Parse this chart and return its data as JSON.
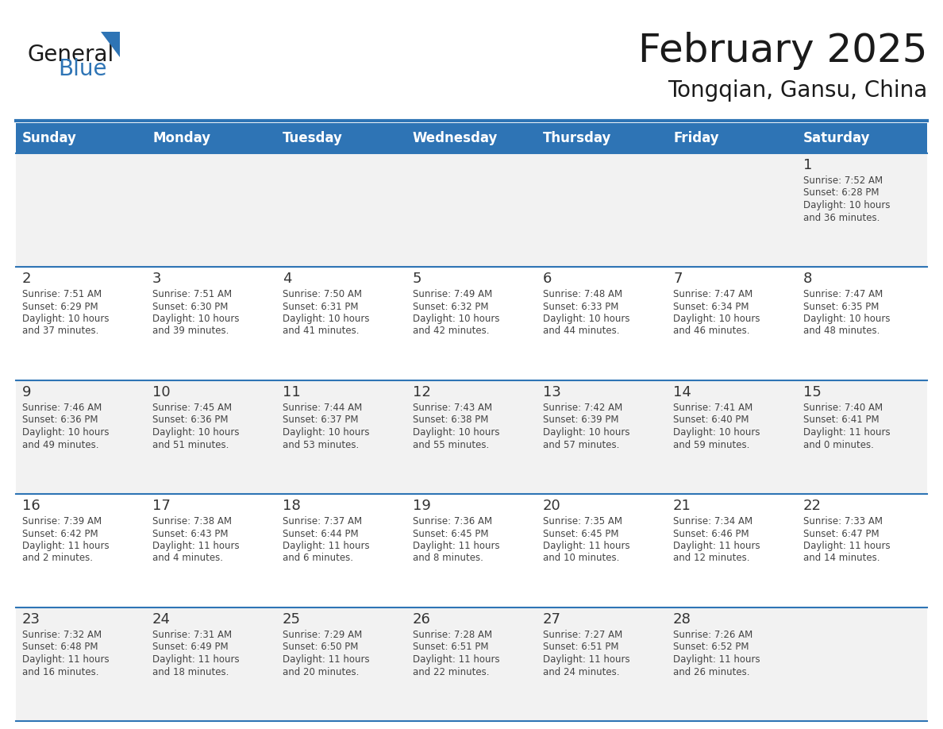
{
  "title": "February 2025",
  "subtitle": "Tongqian, Gansu, China",
  "days_of_week": [
    "Sunday",
    "Monday",
    "Tuesday",
    "Wednesday",
    "Thursday",
    "Friday",
    "Saturday"
  ],
  "header_bg": "#2E74B5",
  "header_text": "#FFFFFF",
  "row_bg_light": "#F2F2F2",
  "row_bg_white": "#FFFFFF",
  "day_number_color": "#333333",
  "text_color": "#444444",
  "border_color": "#2E74B5",
  "logo_general_color": "#1a1a1a",
  "logo_blue_color": "#2E74B5",
  "logo_triangle_color": "#2E74B5",
  "calendar_data": [
    [
      null,
      null,
      null,
      null,
      null,
      null,
      {
        "day": 1,
        "sunrise": "7:52 AM",
        "sunset": "6:28 PM",
        "daylight": "10 hours and 36 minutes."
      }
    ],
    [
      {
        "day": 2,
        "sunrise": "7:51 AM",
        "sunset": "6:29 PM",
        "daylight": "10 hours and 37 minutes."
      },
      {
        "day": 3,
        "sunrise": "7:51 AM",
        "sunset": "6:30 PM",
        "daylight": "10 hours and 39 minutes."
      },
      {
        "day": 4,
        "sunrise": "7:50 AM",
        "sunset": "6:31 PM",
        "daylight": "10 hours and 41 minutes."
      },
      {
        "day": 5,
        "sunrise": "7:49 AM",
        "sunset": "6:32 PM",
        "daylight": "10 hours and 42 minutes."
      },
      {
        "day": 6,
        "sunrise": "7:48 AM",
        "sunset": "6:33 PM",
        "daylight": "10 hours and 44 minutes."
      },
      {
        "day": 7,
        "sunrise": "7:47 AM",
        "sunset": "6:34 PM",
        "daylight": "10 hours and 46 minutes."
      },
      {
        "day": 8,
        "sunrise": "7:47 AM",
        "sunset": "6:35 PM",
        "daylight": "10 hours and 48 minutes."
      }
    ],
    [
      {
        "day": 9,
        "sunrise": "7:46 AM",
        "sunset": "6:36 PM",
        "daylight": "10 hours and 49 minutes."
      },
      {
        "day": 10,
        "sunrise": "7:45 AM",
        "sunset": "6:36 PM",
        "daylight": "10 hours and 51 minutes."
      },
      {
        "day": 11,
        "sunrise": "7:44 AM",
        "sunset": "6:37 PM",
        "daylight": "10 hours and 53 minutes."
      },
      {
        "day": 12,
        "sunrise": "7:43 AM",
        "sunset": "6:38 PM",
        "daylight": "10 hours and 55 minutes."
      },
      {
        "day": 13,
        "sunrise": "7:42 AM",
        "sunset": "6:39 PM",
        "daylight": "10 hours and 57 minutes."
      },
      {
        "day": 14,
        "sunrise": "7:41 AM",
        "sunset": "6:40 PM",
        "daylight": "10 hours and 59 minutes."
      },
      {
        "day": 15,
        "sunrise": "7:40 AM",
        "sunset": "6:41 PM",
        "daylight": "11 hours and 0 minutes."
      }
    ],
    [
      {
        "day": 16,
        "sunrise": "7:39 AM",
        "sunset": "6:42 PM",
        "daylight": "11 hours and 2 minutes."
      },
      {
        "day": 17,
        "sunrise": "7:38 AM",
        "sunset": "6:43 PM",
        "daylight": "11 hours and 4 minutes."
      },
      {
        "day": 18,
        "sunrise": "7:37 AM",
        "sunset": "6:44 PM",
        "daylight": "11 hours and 6 minutes."
      },
      {
        "day": 19,
        "sunrise": "7:36 AM",
        "sunset": "6:45 PM",
        "daylight": "11 hours and 8 minutes."
      },
      {
        "day": 20,
        "sunrise": "7:35 AM",
        "sunset": "6:45 PM",
        "daylight": "11 hours and 10 minutes."
      },
      {
        "day": 21,
        "sunrise": "7:34 AM",
        "sunset": "6:46 PM",
        "daylight": "11 hours and 12 minutes."
      },
      {
        "day": 22,
        "sunrise": "7:33 AM",
        "sunset": "6:47 PM",
        "daylight": "11 hours and 14 minutes."
      }
    ],
    [
      {
        "day": 23,
        "sunrise": "7:32 AM",
        "sunset": "6:48 PM",
        "daylight": "11 hours and 16 minutes."
      },
      {
        "day": 24,
        "sunrise": "7:31 AM",
        "sunset": "6:49 PM",
        "daylight": "11 hours and 18 minutes."
      },
      {
        "day": 25,
        "sunrise": "7:29 AM",
        "sunset": "6:50 PM",
        "daylight": "11 hours and 20 minutes."
      },
      {
        "day": 26,
        "sunrise": "7:28 AM",
        "sunset": "6:51 PM",
        "daylight": "11 hours and 22 minutes."
      },
      {
        "day": 27,
        "sunrise": "7:27 AM",
        "sunset": "6:51 PM",
        "daylight": "11 hours and 24 minutes."
      },
      {
        "day": 28,
        "sunrise": "7:26 AM",
        "sunset": "6:52 PM",
        "daylight": "11 hours and 26 minutes."
      },
      null
    ]
  ]
}
